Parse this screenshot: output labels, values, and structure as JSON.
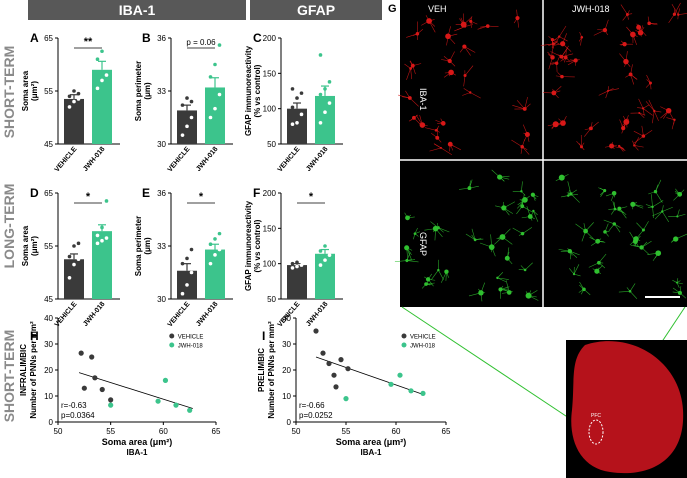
{
  "header": {
    "iba1": "IBA-1",
    "gfap": "GFAP"
  },
  "row_labels": {
    "short_term": "SHORT-TERM",
    "long_term": "LONG-TERM",
    "short_term_corr": "SHORT-TERM"
  },
  "colors": {
    "vehicle": "#3a3a3a",
    "jwh": "#3cc48c",
    "header_bg": "#585858",
    "red_channel": "#d81818",
    "green_channel": "#30c030"
  },
  "images": {
    "panel_letter": "G",
    "col_veh": "VEH",
    "col_jwh": "JWH-018",
    "row_iba1": "IBA-1",
    "row_gfap": "GFAP",
    "pfc_label": "PFC"
  },
  "chart_data": [
    {
      "id": "A",
      "type": "bar",
      "ylabel": "Soma area (μm²)",
      "ylim": [
        45,
        65
      ],
      "yticks": [
        45,
        55,
        65
      ],
      "categories": [
        "VEHICLE",
        "JWH-018"
      ],
      "values": [
        53.5,
        59
      ],
      "errors": [
        0.8,
        1.6
      ],
      "points": [
        [
          52,
          53,
          53.5,
          54,
          55,
          54.5
        ],
        [
          55.5,
          57,
          58,
          61,
          62.5
        ]
      ],
      "sig": "**"
    },
    {
      "id": "B",
      "type": "bar",
      "ylabel": "Soma perimeter (μm)",
      "ylim": [
        30,
        36
      ],
      "yticks": [
        30,
        33,
        36
      ],
      "categories": [
        "VEHICLE",
        "JWH-018"
      ],
      "values": [
        31.9,
        33.2
      ],
      "errors": [
        0.3,
        0.55
      ],
      "points": [
        [
          30.5,
          31,
          31.5,
          32.2,
          32.6,
          32.4
        ],
        [
          31.5,
          32,
          32.8,
          33.8,
          34.5,
          35.6
        ]
      ],
      "sig": "p = 0.06"
    },
    {
      "id": "C",
      "type": "bar",
      "ylabel": "GFAP immunoreactivity (% vs control)",
      "ylim": [
        50,
        200
      ],
      "yticks": [
        50,
        100,
        150,
        200
      ],
      "categories": [
        "VEHICLE",
        "JWH-018"
      ],
      "values": [
        100,
        118
      ],
      "errors": [
        8,
        14
      ],
      "points": [
        [
          78,
          80,
          92,
          102,
          115,
          122,
          128
        ],
        [
          80,
          95,
          108,
          120,
          128,
          138,
          176
        ]
      ],
      "sig": ""
    },
    {
      "id": "D",
      "type": "bar",
      "ylabel": "Soma area (μm²)",
      "ylim": [
        45,
        65
      ],
      "yticks": [
        45,
        55,
        65
      ],
      "categories": [
        "VEHICLE",
        "JWH-018"
      ],
      "values": [
        52.5,
        57.8
      ],
      "errors": [
        1,
        1.2
      ],
      "points": [
        [
          49,
          51.5,
          52.5,
          53,
          55,
          55.5
        ],
        [
          55.5,
          56,
          56.5,
          57,
          58.5,
          63.5
        ]
      ],
      "sig": "*"
    },
    {
      "id": "E",
      "type": "bar",
      "ylabel": "Soma perimeter (μm)",
      "ylim": [
        30,
        36
      ],
      "yticks": [
        30,
        33,
        36
      ],
      "categories": [
        "VEHICLE",
        "JWH-018"
      ],
      "values": [
        31.6,
        32.8
      ],
      "errors": [
        0.4,
        0.3
      ],
      "points": [
        [
          30.3,
          30.8,
          31.5,
          32,
          32.3,
          32.8
        ],
        [
          32,
          32.5,
          32.8,
          33.1,
          33.4,
          33.7
        ]
      ],
      "sig": "*"
    },
    {
      "id": "F",
      "type": "bar",
      "ylabel": "GFAP immunoreactivity (% vs control)",
      "ylim": [
        50,
        200
      ],
      "yticks": [
        50,
        100,
        150,
        200
      ],
      "categories": [
        "VEHICLE",
        "JWH-018"
      ],
      "values": [
        98,
        114
      ],
      "errors": [
        2,
        6
      ],
      "points": [
        [
          94,
          96,
          98,
          100,
          102
        ],
        [
          98,
          105,
          112,
          118,
          125
        ]
      ],
      "sig": "*"
    },
    {
      "id": "H",
      "type": "scatter",
      "ylabel_main": "INFRALIMBIC",
      "ylabel": "Number of PNNs per mm²",
      "xlabel": "Soma area (μm²)",
      "xlabel2": "IBA-1",
      "xlim": [
        50,
        65
      ],
      "xticks": [
        50,
        55,
        60,
        65
      ],
      "ylim": [
        0,
        40
      ],
      "yticks": [
        0,
        10,
        20,
        30,
        40
      ],
      "legend": [
        "VEHICLE",
        "JWH-018"
      ],
      "stats": [
        "r=-0.63",
        "p=0.0364"
      ],
      "vehicle": [
        [
          52.2,
          26.5
        ],
        [
          53.2,
          25
        ],
        [
          52.5,
          13
        ],
        [
          53.5,
          17
        ],
        [
          54.2,
          12.5
        ],
        [
          55,
          8.5
        ]
      ],
      "jwh": [
        [
          55,
          6.5
        ],
        [
          59.5,
          8
        ],
        [
          60.2,
          16
        ],
        [
          61.2,
          6.5
        ],
        [
          62.5,
          4.5
        ]
      ],
      "fit": [
        [
          52,
          19
        ],
        [
          62.8,
          5.2
        ]
      ]
    },
    {
      "id": "I",
      "type": "scatter",
      "ylabel_main": "PRELIMBIC",
      "ylabel": "Number of PNNs per mm²",
      "xlabel": "Soma area (μm²)",
      "xlabel2": "IBA-1",
      "xlim": [
        50,
        65
      ],
      "xticks": [
        50,
        55,
        60,
        65
      ],
      "ylim": [
        0,
        40
      ],
      "yticks": [
        0,
        10,
        20,
        30,
        40
      ],
      "legend": [
        "VEHICLE",
        "JWH-018"
      ],
      "stats": [
        "r=-0.66",
        "p=0.0252"
      ],
      "vehicle": [
        [
          52,
          35
        ],
        [
          52.7,
          26.5
        ],
        [
          53.3,
          22.5
        ],
        [
          54,
          13.5
        ],
        [
          54.5,
          24
        ],
        [
          55.2,
          20.5
        ],
        [
          53.8,
          18
        ]
      ],
      "jwh": [
        [
          55,
          9
        ],
        [
          59.5,
          14.5
        ],
        [
          60.4,
          18
        ],
        [
          61.5,
          12
        ],
        [
          62.7,
          11
        ]
      ],
      "fit": [
        [
          52,
          25
        ],
        [
          62.8,
          10.5
        ]
      ]
    }
  ]
}
